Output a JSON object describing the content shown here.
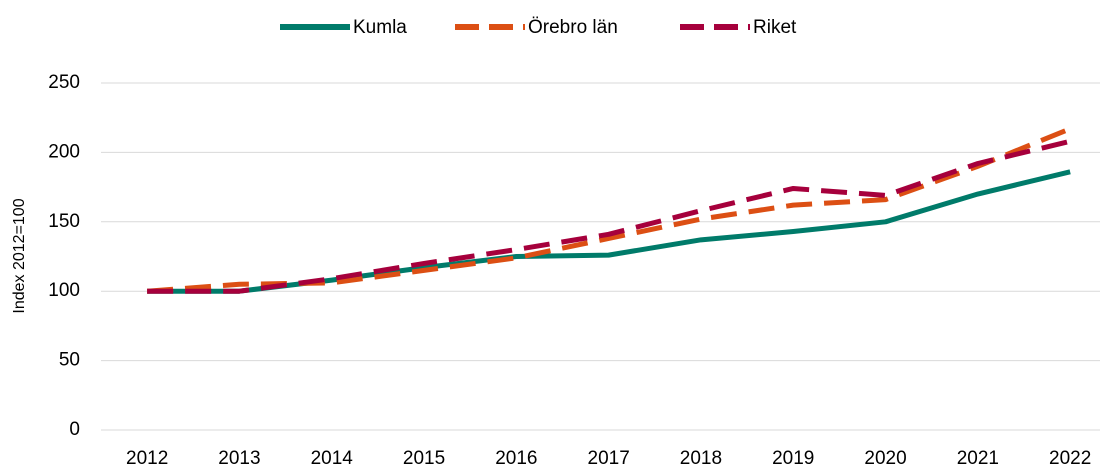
{
  "chart_data": {
    "type": "line",
    "y_label": "Index 2012=100",
    "categories": [
      "2012",
      "2013",
      "2014",
      "2015",
      "2016",
      "2017",
      "2018",
      "2019",
      "2020",
      "2021",
      "2022"
    ],
    "series": [
      {
        "name": "Kumla",
        "color": "#007b6a",
        "style": "solid",
        "values": [
          100,
          100,
          108,
          117,
          125,
          126,
          137,
          143,
          150,
          170,
          186
        ]
      },
      {
        "name": "Örebro län",
        "color": "#dc4f14",
        "style": "dashed",
        "values": [
          100,
          105,
          106,
          115,
          124,
          138,
          152,
          162,
          166,
          190,
          217
        ]
      },
      {
        "name": "Riket",
        "color": "#a6003c",
        "style": "dashed",
        "values": [
          100,
          100,
          109,
          120,
          130,
          141,
          158,
          174,
          169,
          192,
          208
        ]
      }
    ],
    "ylim": [
      0,
      250
    ],
    "yticks": [
      0,
      50,
      100,
      150,
      200,
      250
    ],
    "grid": true,
    "legend": "top"
  }
}
